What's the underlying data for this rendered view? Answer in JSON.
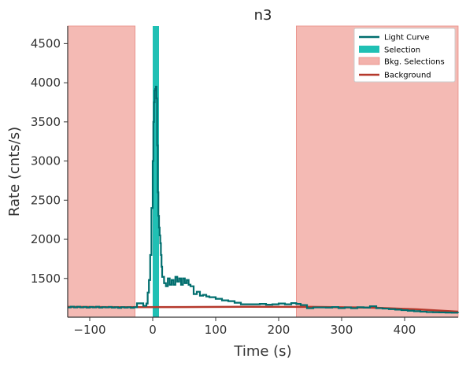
{
  "chart_data": {
    "type": "line",
    "title": "n3",
    "xlabel": "Time (s)",
    "ylabel": "Rate (cnts/s)",
    "xlim": [
      -135,
      485
    ],
    "ylim": [
      1005,
      4725
    ],
    "xticks": [
      -100,
      0,
      100,
      200,
      300,
      400
    ],
    "yticks": [
      1500,
      2000,
      2500,
      3000,
      3500,
      4000,
      4500
    ],
    "legend_position": "top-right",
    "legend": [
      {
        "label": "Light Curve",
        "kind": "line",
        "color": "#006e6e"
      },
      {
        "label": "Selection",
        "kind": "patch",
        "color": "#20c0b4"
      },
      {
        "label": "Bkg. Selections",
        "kind": "patch",
        "color": "#f3b2ac"
      },
      {
        "label": "Background",
        "kind": "line",
        "color": "#b5392c"
      }
    ],
    "selection": [
      0,
      10
    ],
    "bkg_selections": [
      [
        -135,
        -28
      ],
      [
        228,
        485
      ]
    ],
    "background": {
      "x": [
        -135,
        -50,
        50,
        150,
        250,
        350,
        420,
        485
      ],
      "y": [
        1137,
        1133,
        1135,
        1138,
        1137,
        1127,
        1105,
        1075
      ]
    },
    "light_curve": {
      "x": [
        -135,
        -130,
        -125,
        -120,
        -115,
        -110,
        -105,
        -100,
        -95,
        -90,
        -85,
        -80,
        -75,
        -70,
        -65,
        -60,
        -55,
        -50,
        -45,
        -40,
        -35,
        -30,
        -25,
        -20,
        -15,
        -10,
        -8,
        -6,
        -4,
        -2,
        0,
        1,
        2,
        3,
        4,
        5,
        6,
        7,
        8,
        9,
        10,
        11,
        12,
        13,
        14,
        15,
        18,
        21,
        24,
        27,
        30,
        33,
        36,
        39,
        42,
        45,
        48,
        51,
        54,
        57,
        60,
        65,
        70,
        75,
        80,
        85,
        90,
        100,
        110,
        120,
        130,
        140,
        150,
        160,
        170,
        180,
        190,
        200,
        210,
        220,
        228,
        235,
        245,
        255,
        265,
        275,
        285,
        295,
        305,
        315,
        325,
        335,
        345,
        355,
        365,
        375,
        385,
        395,
        405,
        415,
        425,
        435,
        445,
        455,
        465,
        475,
        485
      ],
      "y": [
        1130,
        1140,
        1130,
        1138,
        1130,
        1136,
        1128,
        1136,
        1130,
        1138,
        1128,
        1134,
        1130,
        1136,
        1128,
        1132,
        1124,
        1134,
        1128,
        1132,
        1126,
        1132,
        1182,
        1182,
        1150,
        1180,
        1320,
        1480,
        1800,
        2400,
        3000,
        3500,
        3750,
        3900,
        3920,
        3950,
        3800,
        3200,
        2600,
        2300,
        2150,
        2050,
        1950,
        1800,
        1650,
        1520,
        1440,
        1400,
        1500,
        1420,
        1480,
        1420,
        1520,
        1460,
        1500,
        1420,
        1500,
        1440,
        1480,
        1420,
        1400,
        1300,
        1330,
        1280,
        1290,
        1270,
        1260,
        1240,
        1220,
        1210,
        1190,
        1170,
        1170,
        1170,
        1175,
        1165,
        1170,
        1180,
        1170,
        1185,
        1175,
        1160,
        1120,
        1130,
        1130,
        1128,
        1135,
        1122,
        1130,
        1120,
        1132,
        1128,
        1145,
        1120,
        1115,
        1108,
        1102,
        1095,
        1088,
        1082,
        1076,
        1070,
        1068,
        1066,
        1064,
        1062,
        1060
      ]
    }
  }
}
